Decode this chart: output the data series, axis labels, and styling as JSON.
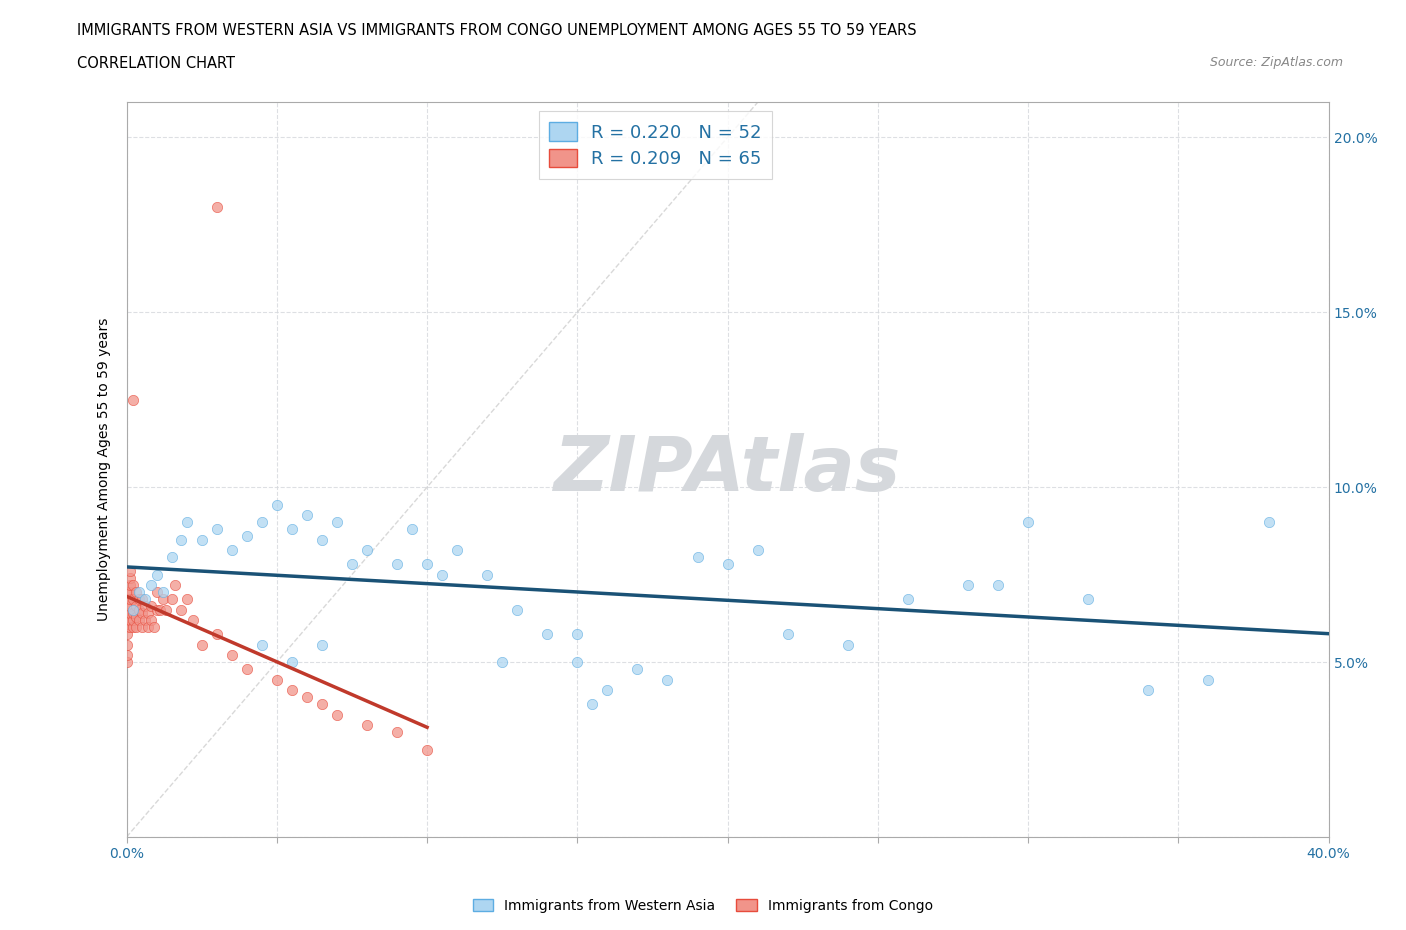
{
  "title_line1": "IMMIGRANTS FROM WESTERN ASIA VS IMMIGRANTS FROM CONGO UNEMPLOYMENT AMONG AGES 55 TO 59 YEARS",
  "title_line2": "CORRELATION CHART",
  "source_text": "Source: ZipAtlas.com",
  "ylabel": "Unemployment Among Ages 55 to 59 years",
  "xlim": [
    0.0,
    0.4
  ],
  "ylim": [
    0.0,
    0.21
  ],
  "xticks": [
    0.0,
    0.05,
    0.1,
    0.15,
    0.2,
    0.25,
    0.3,
    0.35,
    0.4
  ],
  "yticks": [
    0.0,
    0.05,
    0.1,
    0.15,
    0.2
  ],
  "blue_color": "#AED6F1",
  "pink_color": "#F1948A",
  "blue_edge_color": "#5DADE2",
  "pink_edge_color": "#E74C3C",
  "blue_line_color": "#1A5276",
  "pink_line_color": "#C0392B",
  "diag_color": "#D5D8DC",
  "watermark_color": "#D5D8DC",
  "R_blue": 0.22,
  "N_blue": 52,
  "R_pink": 0.209,
  "N_pink": 65,
  "legend_color": "#2471A3",
  "blue_scatter_x": [
    0.002,
    0.004,
    0.006,
    0.008,
    0.01,
    0.012,
    0.015,
    0.018,
    0.02,
    0.025,
    0.03,
    0.035,
    0.04,
    0.045,
    0.05,
    0.055,
    0.06,
    0.065,
    0.07,
    0.075,
    0.08,
    0.09,
    0.095,
    0.1,
    0.11,
    0.12,
    0.13,
    0.14,
    0.15,
    0.16,
    0.17,
    0.18,
    0.19,
    0.2,
    0.21,
    0.22,
    0.24,
    0.26,
    0.28,
    0.3,
    0.32,
    0.34,
    0.36,
    0.38,
    0.045,
    0.055,
    0.065,
    0.105,
    0.125,
    0.15,
    0.155,
    0.29
  ],
  "blue_scatter_y": [
    0.065,
    0.07,
    0.068,
    0.072,
    0.075,
    0.07,
    0.08,
    0.085,
    0.09,
    0.085,
    0.088,
    0.082,
    0.086,
    0.09,
    0.095,
    0.088,
    0.092,
    0.085,
    0.09,
    0.078,
    0.082,
    0.078,
    0.088,
    0.078,
    0.082,
    0.075,
    0.065,
    0.058,
    0.058,
    0.042,
    0.048,
    0.045,
    0.08,
    0.078,
    0.082,
    0.058,
    0.055,
    0.068,
    0.072,
    0.09,
    0.068,
    0.042,
    0.045,
    0.09,
    0.055,
    0.05,
    0.055,
    0.075,
    0.05,
    0.05,
    0.038,
    0.072
  ],
  "pink_scatter_x": [
    0.0,
    0.0,
    0.0,
    0.0,
    0.0,
    0.0,
    0.0,
    0.0,
    0.0,
    0.0,
    0.001,
    0.001,
    0.001,
    0.001,
    0.001,
    0.001,
    0.001,
    0.001,
    0.001,
    0.002,
    0.002,
    0.002,
    0.002,
    0.002,
    0.003,
    0.003,
    0.003,
    0.003,
    0.004,
    0.004,
    0.004,
    0.005,
    0.005,
    0.005,
    0.006,
    0.006,
    0.007,
    0.007,
    0.008,
    0.008,
    0.009,
    0.01,
    0.01,
    0.011,
    0.012,
    0.013,
    0.015,
    0.016,
    0.018,
    0.02,
    0.022,
    0.025,
    0.03,
    0.035,
    0.04,
    0.05,
    0.055,
    0.06,
    0.065,
    0.07,
    0.08,
    0.09,
    0.1,
    0.03,
    0.002
  ],
  "pink_scatter_y": [
    0.06,
    0.062,
    0.064,
    0.066,
    0.068,
    0.07,
    0.055,
    0.058,
    0.05,
    0.052,
    0.06,
    0.062,
    0.064,
    0.066,
    0.068,
    0.07,
    0.072,
    0.074,
    0.076,
    0.06,
    0.062,
    0.064,
    0.068,
    0.072,
    0.06,
    0.063,
    0.066,
    0.07,
    0.062,
    0.065,
    0.068,
    0.06,
    0.064,
    0.068,
    0.062,
    0.066,
    0.06,
    0.064,
    0.062,
    0.066,
    0.06,
    0.065,
    0.07,
    0.065,
    0.068,
    0.065,
    0.068,
    0.072,
    0.065,
    0.068,
    0.062,
    0.055,
    0.058,
    0.052,
    0.048,
    0.045,
    0.042,
    0.04,
    0.038,
    0.035,
    0.032,
    0.03,
    0.025,
    0.18,
    0.125
  ]
}
